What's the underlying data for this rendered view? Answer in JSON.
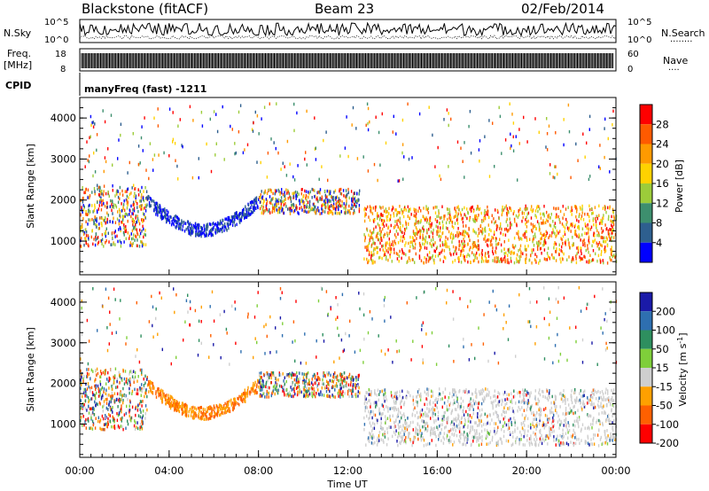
{
  "header": {
    "station": "Blackstone (fitACF)",
    "beam": "Beam 23",
    "date": "02/Feb/2014"
  },
  "noise_panel": {
    "left_label": "N.Sky",
    "right_label": "N.Search",
    "left_ticks": [
      "10^5",
      "10^0"
    ],
    "right_ticks": [
      "10^5",
      "10^0"
    ]
  },
  "freq_panel": {
    "left_label_1": "Freq.",
    "left_label_2": "[MHz]",
    "right_label": "Nave",
    "left_ticks": [
      "18",
      "8"
    ],
    "right_ticks": [
      "60",
      "0"
    ]
  },
  "cpid_panel": {
    "label": "CPID",
    "program": "manyFreq (fast) -1211"
  },
  "power_panel": {
    "ylabel": "Slant Range [km]",
    "colorbar_label": "Power [dB]",
    "colorbar_ticks": [
      "28",
      "24",
      "20",
      "16",
      "12",
      "8",
      "4"
    ],
    "colorbar_colors": [
      "#ff0000",
      "#ff5a00",
      "#ff9a00",
      "#ffd200",
      "#9ccc3a",
      "#3d8f6e",
      "#2e5f8f",
      "#0000ff"
    ]
  },
  "velocity_panel": {
    "ylabel": "Slant Range [km]",
    "colorbar_label": "Velocity [m s",
    "colorbar_unit_sup": "-1",
    "colorbar_label_end": "]",
    "colorbar_ticks": [
      "200",
      "100",
      "50",
      "15",
      "-15",
      "-50",
      "-100",
      "-200"
    ],
    "colorbar_colors": [
      "#1a1aa8",
      "#2e6fb0",
      "#2e8f5f",
      "#7fcf3a",
      "#cfcfcf",
      "#ffa000",
      "#ff6000",
      "#ff0000"
    ]
  },
  "chart_data": {
    "type": "heatmap",
    "xlabel": "Time UT",
    "x_ticks": [
      "00:00",
      "04:00",
      "08:00",
      "12:00",
      "16:00",
      "20:00",
      "00:00"
    ],
    "x_hours": [
      0,
      4,
      8,
      12,
      16,
      20,
      24
    ],
    "y_ticks": [
      "1000",
      "2000",
      "3000",
      "4000"
    ],
    "y_values_km": [
      1000,
      2000,
      3000,
      4000
    ],
    "ylim_km": [
      180,
      4500
    ],
    "xlim_hours": [
      0,
      24
    ],
    "scatter_regions": [
      {
        "name": "early_band",
        "t0": 0.0,
        "t1": 3.0,
        "r0": 900,
        "r1": 2400
      },
      {
        "name": "evening_arc",
        "t0": 3.0,
        "t1": 8.0,
        "r0": 1200,
        "r1": 2100
      },
      {
        "name": "midday",
        "t0": 8.0,
        "t1": 12.5,
        "r0": 1700,
        "r1": 2300
      },
      {
        "name": "night_band",
        "t0": 12.7,
        "t1": 24.0,
        "r0": 500,
        "r1": 1900
      },
      {
        "name": "far_range",
        "t0": 0.0,
        "t1": 24.0,
        "r0": 2500,
        "r1": 4400
      }
    ]
  }
}
